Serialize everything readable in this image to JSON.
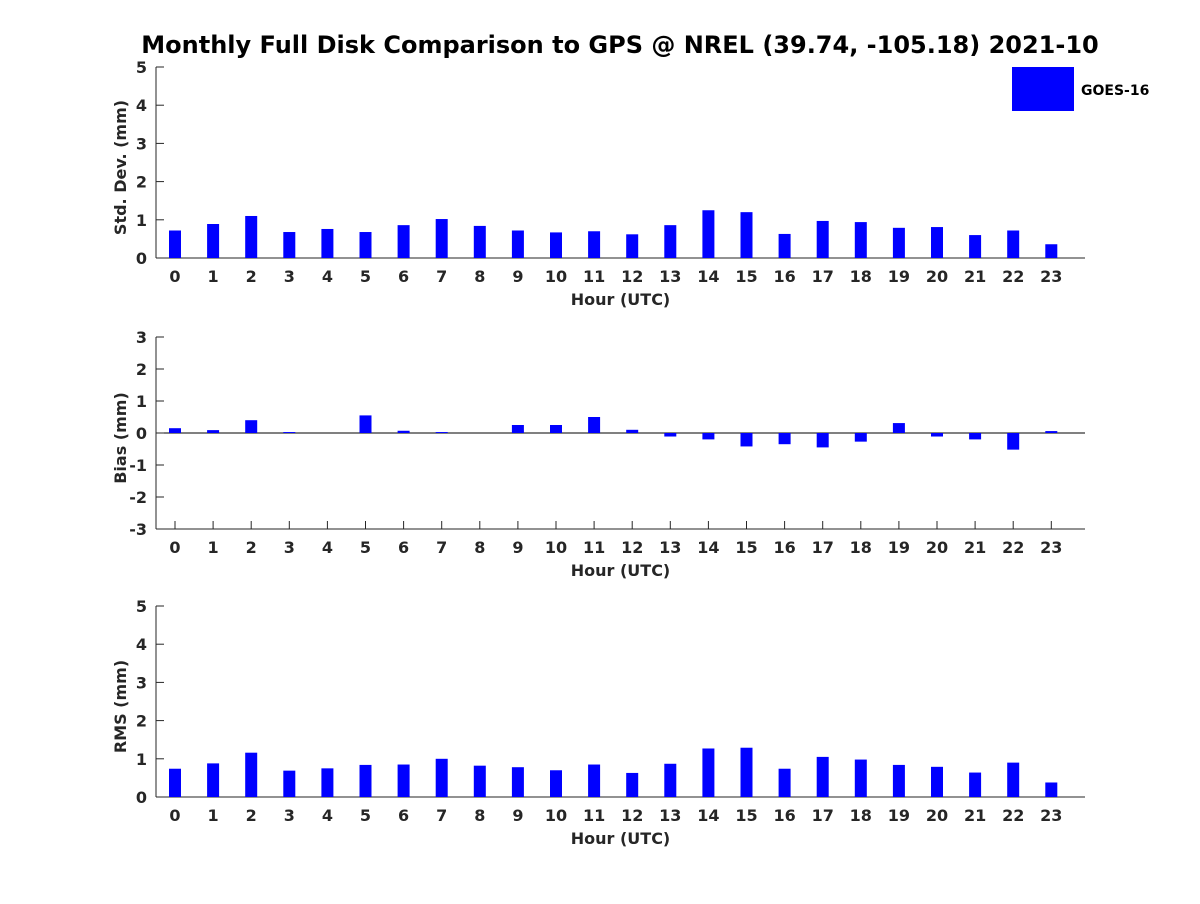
{
  "title": "Monthly Full Disk Comparison to GPS @ NREL (39.74, -105.18) 2021-10",
  "legend": {
    "label": "GOES-16",
    "color": "#0000ff"
  },
  "chart_data": [
    {
      "type": "bar",
      "xlabel": "Hour (UTC)",
      "ylabel": "Std. Dev. (mm)",
      "ylim": [
        0,
        5
      ],
      "yticks": [
        0,
        1,
        2,
        3,
        4,
        5
      ],
      "categories": [
        "0",
        "1",
        "2",
        "3",
        "4",
        "5",
        "6",
        "7",
        "8",
        "9",
        "10",
        "11",
        "12",
        "13",
        "14",
        "15",
        "16",
        "17",
        "18",
        "19",
        "20",
        "21",
        "22",
        "23"
      ],
      "series": [
        {
          "name": "GOES-16",
          "color": "#0000ff",
          "values": [
            0.72,
            0.89,
            1.1,
            0.68,
            0.76,
            0.68,
            0.86,
            1.02,
            0.84,
            0.72,
            0.67,
            0.7,
            0.62,
            0.86,
            1.25,
            1.2,
            0.63,
            0.97,
            0.94,
            0.79,
            0.81,
            0.6,
            0.72,
            0.36
          ]
        }
      ]
    },
    {
      "type": "bar",
      "xlabel": "Hour (UTC)",
      "ylabel": "Bias (mm)",
      "ylim": [
        -3,
        3
      ],
      "yticks": [
        -3,
        -2,
        -1,
        0,
        1,
        2,
        3
      ],
      "categories": [
        "0",
        "1",
        "2",
        "3",
        "4",
        "5",
        "6",
        "7",
        "8",
        "9",
        "10",
        "11",
        "12",
        "13",
        "14",
        "15",
        "16",
        "17",
        "18",
        "19",
        "20",
        "21",
        "22",
        "23"
      ],
      "series": [
        {
          "name": "GOES-16",
          "color": "#0000ff",
          "values": [
            0.15,
            0.09,
            0.4,
            0.03,
            0,
            0.55,
            0.07,
            0.03,
            0,
            0.25,
            0.25,
            0.5,
            0.1,
            -0.11,
            -0.2,
            -0.42,
            -0.35,
            -0.45,
            -0.27,
            0.31,
            -0.11,
            -0.2,
            -0.52,
            0.06
          ]
        }
      ]
    },
    {
      "type": "bar",
      "xlabel": "Hour (UTC)",
      "ylabel": "RMS (mm)",
      "ylim": [
        0,
        5
      ],
      "yticks": [
        0,
        1,
        2,
        3,
        4,
        5
      ],
      "categories": [
        "0",
        "1",
        "2",
        "3",
        "4",
        "5",
        "6",
        "7",
        "8",
        "9",
        "10",
        "11",
        "12",
        "13",
        "14",
        "15",
        "16",
        "17",
        "18",
        "19",
        "20",
        "21",
        "22",
        "23"
      ],
      "series": [
        {
          "name": "GOES-16",
          "color": "#0000ff",
          "values": [
            0.74,
            0.88,
            1.16,
            0.69,
            0.75,
            0.84,
            0.85,
            1.0,
            0.82,
            0.78,
            0.7,
            0.85,
            0.63,
            0.87,
            1.27,
            1.29,
            0.74,
            1.05,
            0.98,
            0.84,
            0.79,
            0.64,
            0.9,
            0.38
          ]
        }
      ]
    }
  ]
}
